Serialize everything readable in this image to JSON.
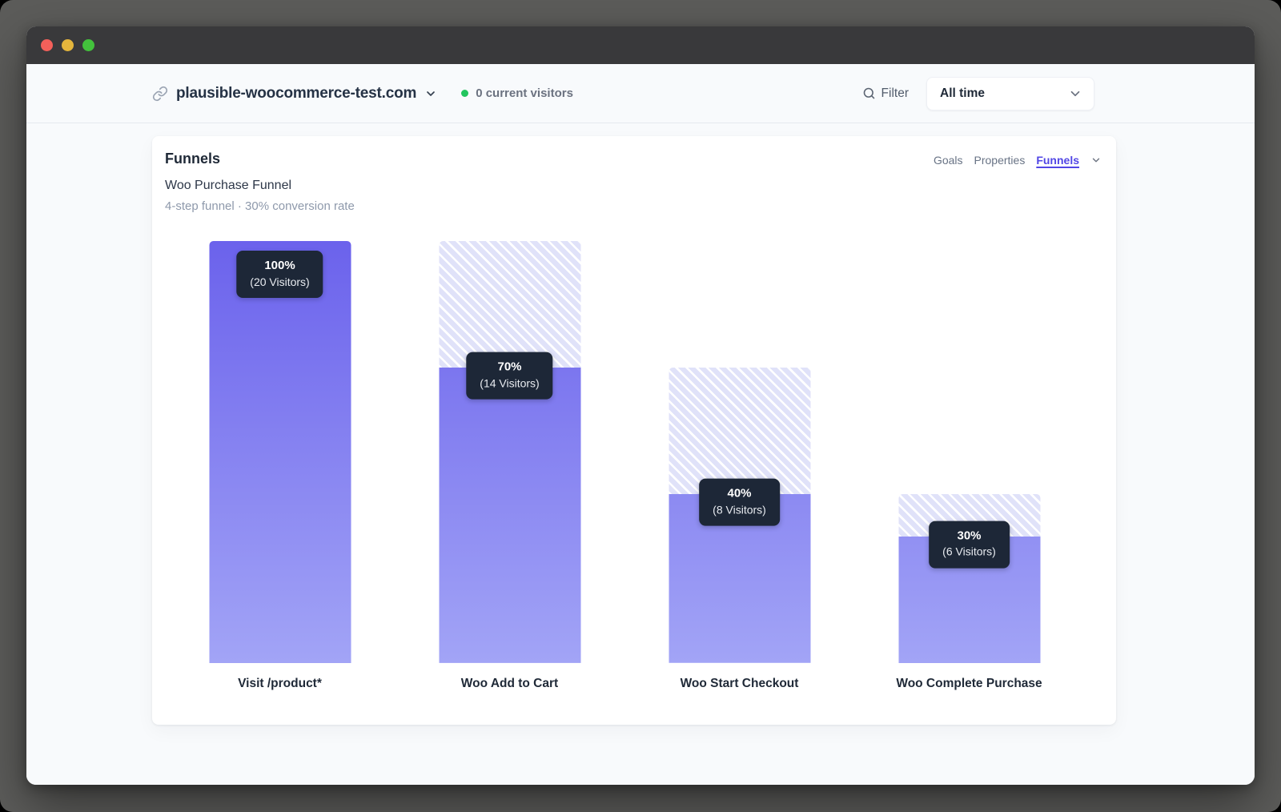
{
  "header": {
    "site_name": "plausible-woocommerce-test.com",
    "current_visitors": "0 current visitors",
    "filter_label": "Filter",
    "date_picker_selected": "All time"
  },
  "panel": {
    "heading": "Funnels",
    "tabs": [
      {
        "label": "Goals",
        "active": false
      },
      {
        "label": "Properties",
        "active": false
      },
      {
        "label": "Funnels",
        "active": true
      }
    ],
    "funnel_name": "Woo Purchase Funnel",
    "funnel_meta": "4-step funnel · 30% conversion rate"
  },
  "chart_data": {
    "type": "bar",
    "variant": "funnel",
    "title": "Woo Purchase Funnel",
    "subtitle": "4-step funnel · 30% conversion rate",
    "categories": [
      "Visit /product*",
      "Woo Add to Cart",
      "Woo Start Checkout",
      "Woo Complete Purchase"
    ],
    "series": [
      {
        "name": "Visitors",
        "values": [
          20,
          14,
          8,
          6
        ]
      }
    ],
    "percentages": [
      100,
      70,
      40,
      30
    ],
    "bar_total_percentages": [
      100,
      100,
      70,
      40
    ],
    "data_labels": [
      {
        "percent": "100%",
        "visitors": "(20 Visitors)"
      },
      {
        "percent": "70%",
        "visitors": "(14 Visitors)"
      },
      {
        "percent": "40%",
        "visitors": "(8 Visitors)"
      },
      {
        "percent": "30%",
        "visitors": "(6 Visitors)"
      }
    ],
    "ylim": [
      0,
      100
    ],
    "grid": false,
    "legend": false,
    "colors": {
      "bar_gradient_top": "#6b62ec",
      "bar_gradient_bottom": "#a2a4f6",
      "dropoff_background": "#e0e2f9",
      "dropoff_stripe": "#ffffff",
      "tooltip_background": "#1d2737"
    }
  },
  "colors": {
    "accent": "#5146e5",
    "live_dot": "#22c55e",
    "titlebar": "#39393b"
  }
}
